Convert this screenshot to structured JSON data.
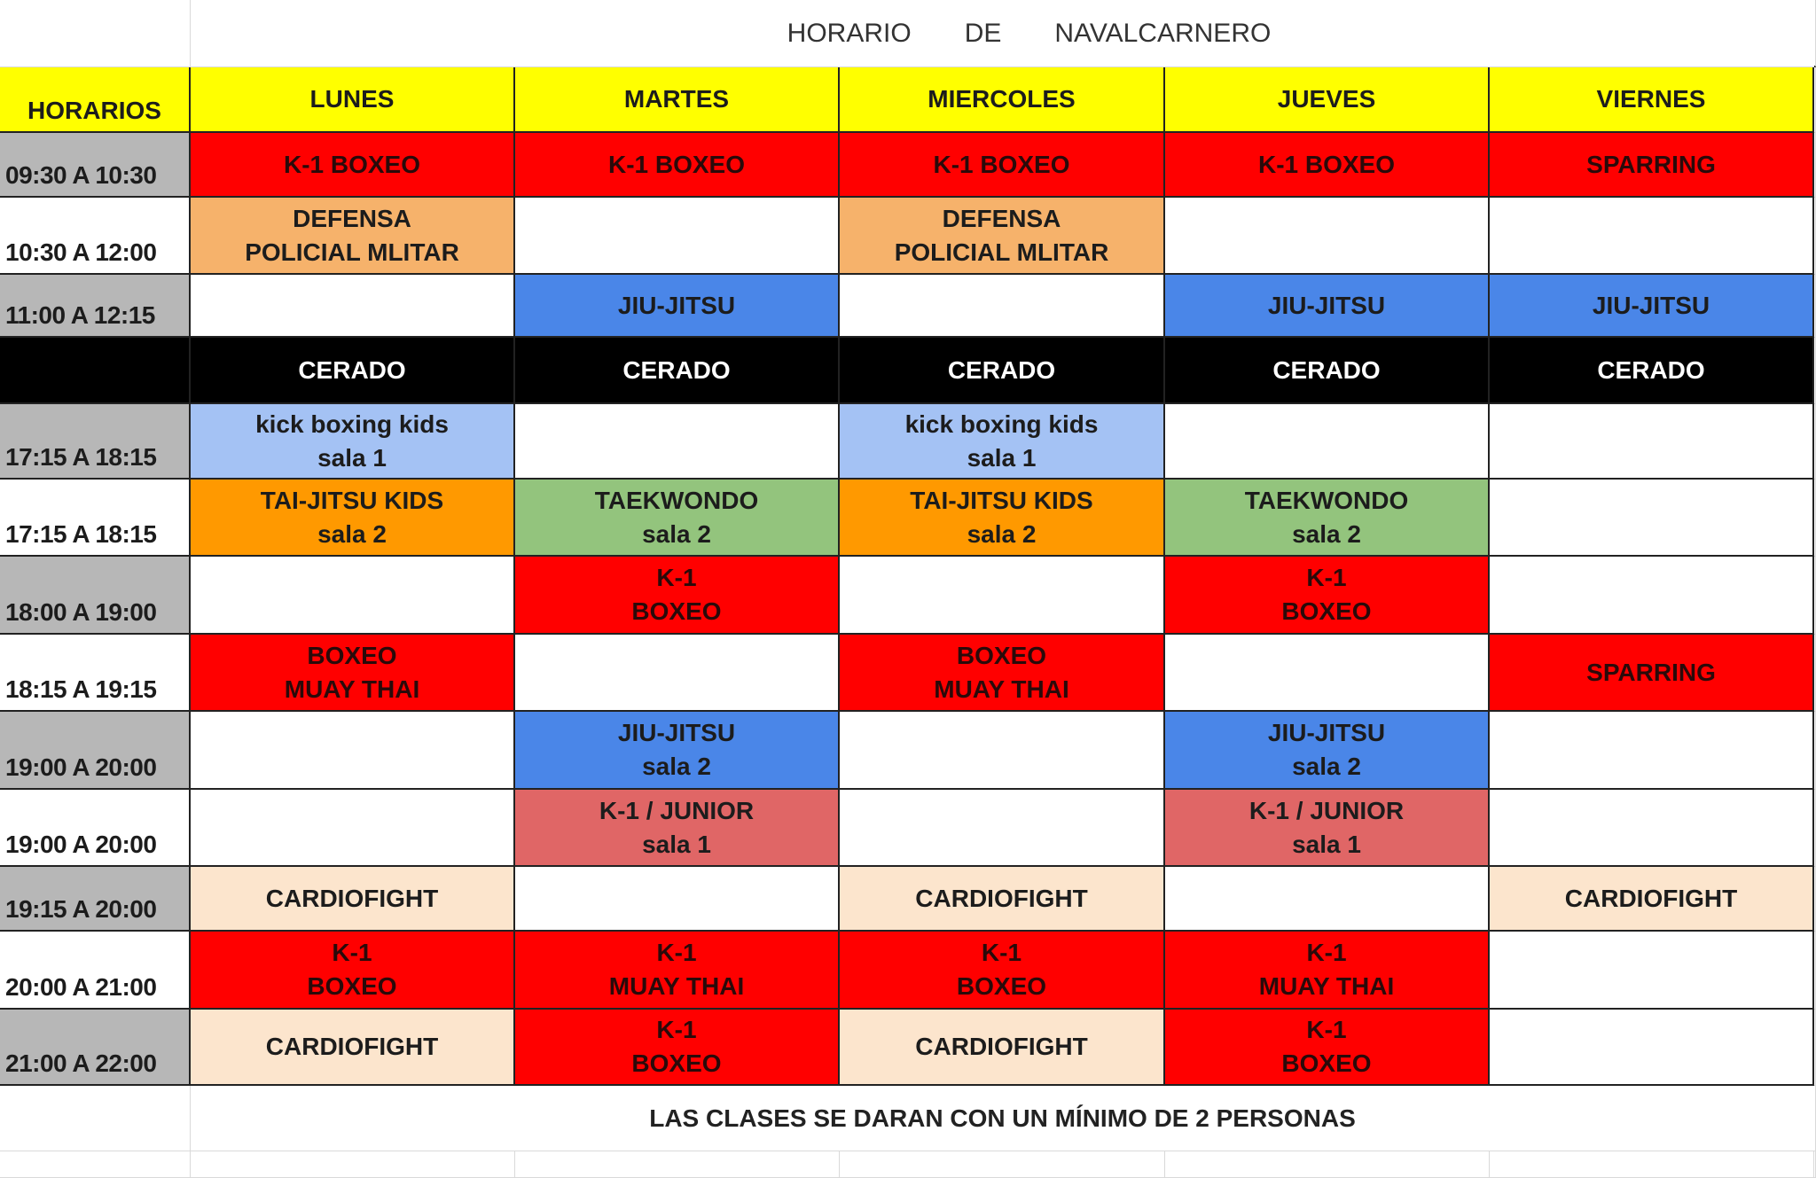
{
  "title": {
    "words": [
      "HORARIO",
      "DE",
      "NAVALCARNERO"
    ]
  },
  "header": {
    "first": "HORARIOS",
    "days": [
      "LUNES",
      "MARTES",
      "MIERCOLES",
      "JUEVES",
      "VIERNES"
    ]
  },
  "colors": {
    "header": "#ffff00",
    "time_gray": "#b7b7b7",
    "red": "#ff0000",
    "tan": "#f6b26b",
    "blue": "#4a86e8",
    "lightblue": "#a4c2f4",
    "orange": "#ff9900",
    "green": "#93c47d",
    "rose": "#e06666",
    "peach": "#fce5cd",
    "white": "#ffffff",
    "closed": "#000000"
  },
  "rows": [
    {
      "time": "09:30 A 10:30",
      "gray": true,
      "cells": [
        [
          "K-1 BOXEO",
          "red"
        ],
        [
          "K-1 BOXEO",
          "red"
        ],
        [
          "K-1 BOXEO",
          "red"
        ],
        [
          "K-1 BOXEO",
          "red"
        ],
        [
          "SPARRING",
          "red"
        ]
      ]
    },
    {
      "time": "10:30 A 12:00",
      "gray": false,
      "cells": [
        [
          "DEFENSA\nPOLICIAL MLITAR",
          "tan"
        ],
        [
          "",
          "white"
        ],
        [
          "DEFENSA\nPOLICIAL MLITAR",
          "tan"
        ],
        [
          "",
          "white"
        ],
        [
          "",
          "white"
        ]
      ]
    },
    {
      "time": "11:00 A 12:15",
      "gray": true,
      "cells": [
        [
          "",
          "white"
        ],
        [
          "JIU-JITSU",
          "blue"
        ],
        [
          "",
          "white"
        ],
        [
          "JIU-JITSU",
          "blue"
        ],
        [
          "JIU-JITSU",
          "blue"
        ]
      ]
    },
    {
      "time": "",
      "closed": true,
      "cells": [
        [
          "CERADO",
          "closed"
        ],
        [
          "CERADO",
          "closed"
        ],
        [
          "CERADO",
          "closed"
        ],
        [
          "CERADO",
          "closed"
        ],
        [
          "CERADO",
          "closed"
        ]
      ]
    },
    {
      "time": "17:15 A 18:15",
      "gray": true,
      "cells": [
        [
          "kick boxing kids\nsala 1",
          "lightblue"
        ],
        [
          "",
          "white"
        ],
        [
          "kick boxing kids\nsala 1",
          "lightblue"
        ],
        [
          "",
          "white"
        ],
        [
          "",
          "white"
        ]
      ]
    },
    {
      "time": "17:15 A 18:15",
      "gray": false,
      "cells": [
        [
          "TAI-JITSU KIDS\nsala 2",
          "orange"
        ],
        [
          "TAEKWONDO\nsala 2",
          "green"
        ],
        [
          "TAI-JITSU KIDS\nsala 2",
          "orange"
        ],
        [
          "TAEKWONDO\nsala 2",
          "green"
        ],
        [
          "",
          "white"
        ]
      ]
    },
    {
      "time": "18:00 A 19:00",
      "gray": true,
      "cells": [
        [
          "",
          "white"
        ],
        [
          "K-1\nBOXEO",
          "red"
        ],
        [
          "",
          "white"
        ],
        [
          "K-1\nBOXEO",
          "red"
        ],
        [
          "",
          "white"
        ]
      ]
    },
    {
      "time": "18:15 A 19:15",
      "gray": false,
      "cells": [
        [
          "BOXEO\nMUAY THAI",
          "red"
        ],
        [
          "",
          "white"
        ],
        [
          "BOXEO\nMUAY THAI",
          "red"
        ],
        [
          "",
          "white"
        ],
        [
          "SPARRING",
          "red"
        ]
      ]
    },
    {
      "time": "19:00 A 20:00",
      "gray": true,
      "cells": [
        [
          "",
          "white"
        ],
        [
          "JIU-JITSU\nsala 2",
          "blue"
        ],
        [
          "",
          "white"
        ],
        [
          "JIU-JITSU\nsala 2",
          "blue"
        ],
        [
          "",
          "white"
        ]
      ]
    },
    {
      "time": "19:00 A 20:00",
      "gray": false,
      "cells": [
        [
          "",
          "white"
        ],
        [
          "K-1 / JUNIOR\nsala 1",
          "rose"
        ],
        [
          "",
          "white"
        ],
        [
          "K-1 / JUNIOR\nsala 1",
          "rose"
        ],
        [
          "",
          "white"
        ]
      ]
    },
    {
      "time": "19:15 A 20:00",
      "gray": true,
      "cells": [
        [
          "CARDIOFIGHT",
          "peach"
        ],
        [
          "",
          "white"
        ],
        [
          "CARDIOFIGHT",
          "peach"
        ],
        [
          "",
          "white"
        ],
        [
          "CARDIOFIGHT",
          "peach"
        ]
      ]
    },
    {
      "time": "20:00 A 21:00",
      "gray": false,
      "cells": [
        [
          "K-1\nBOXEO",
          "red"
        ],
        [
          "K-1\nMUAY THAI",
          "red"
        ],
        [
          "K-1\nBOXEO",
          "red"
        ],
        [
          "K-1\nMUAY THAI",
          "red"
        ],
        [
          "",
          "white"
        ]
      ]
    },
    {
      "time": "21:00 A 22:00",
      "gray": true,
      "cells": [
        [
          "CARDIOFIGHT",
          "peach"
        ],
        [
          "K-1\nBOXEO",
          "red"
        ],
        [
          "CARDIOFIGHT",
          "peach"
        ],
        [
          "K-1\nBOXEO",
          "red"
        ],
        [
          "",
          "white"
        ]
      ]
    }
  ],
  "footer": "LAS CLASES SE DARAN CON UN MÍNIMO DE 2 PERSONAS"
}
